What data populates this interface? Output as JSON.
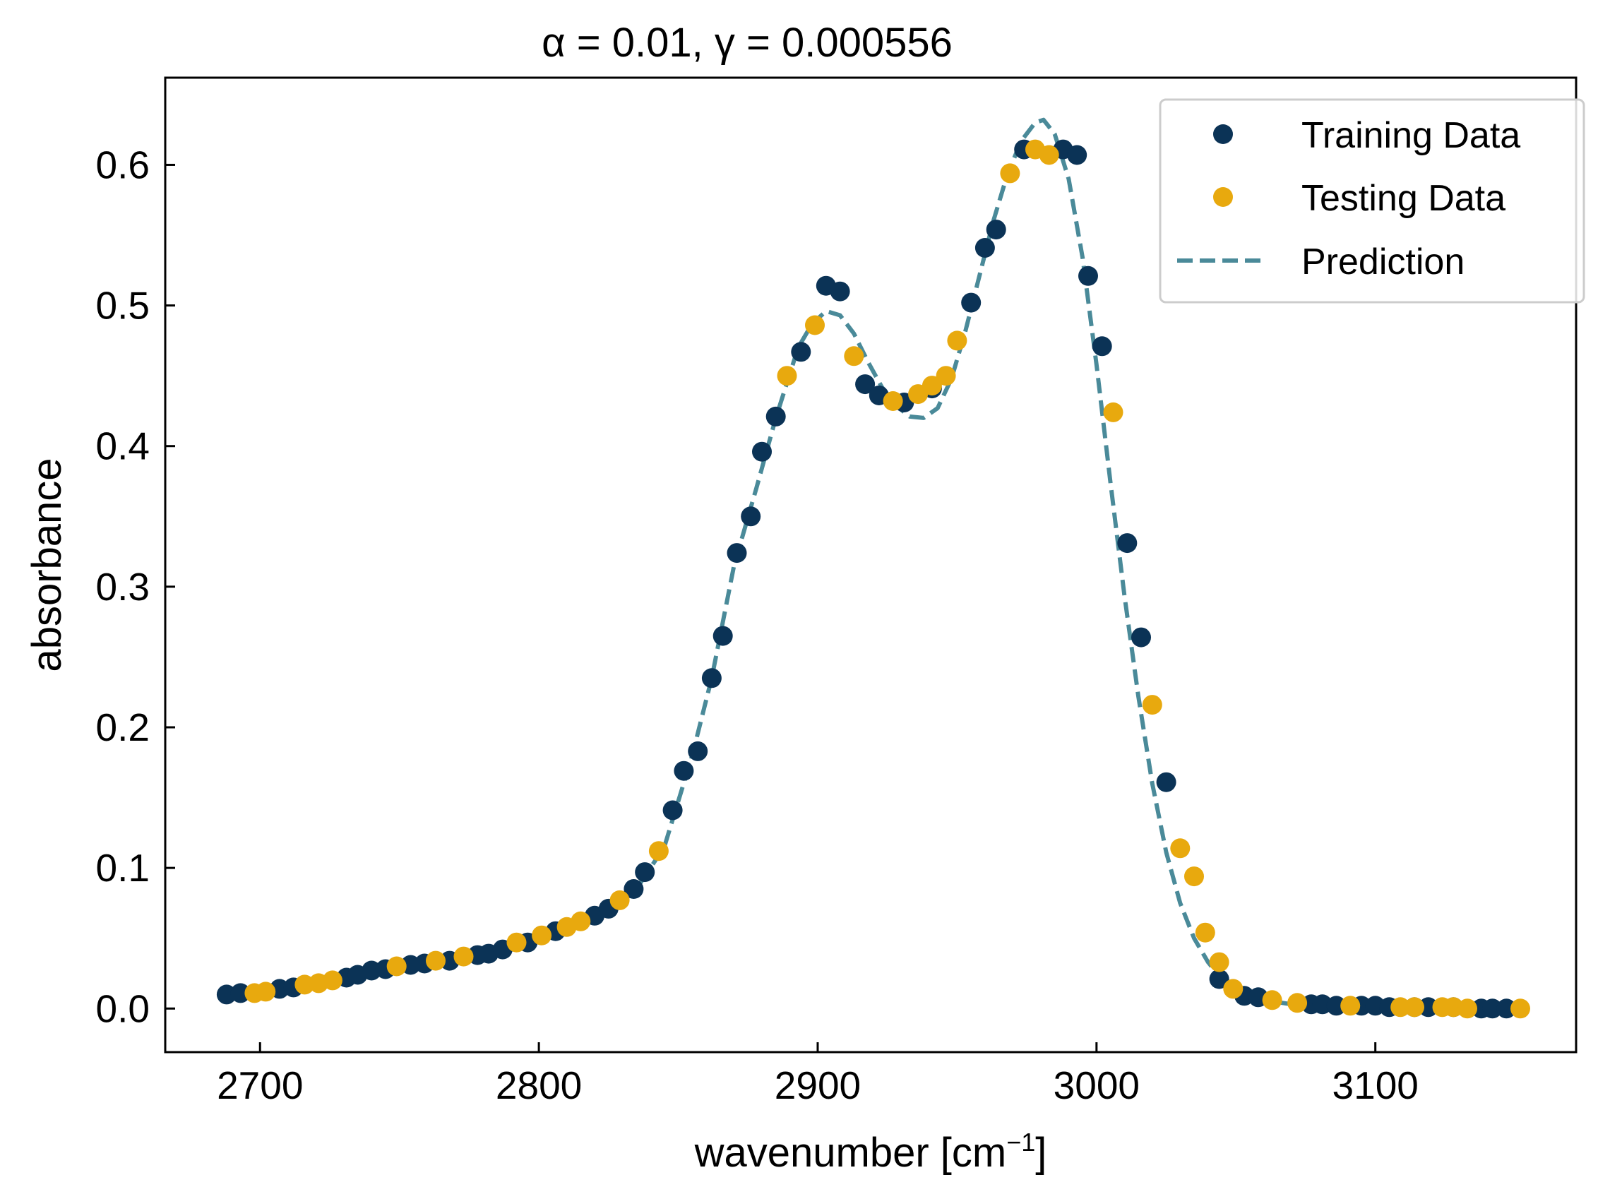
{
  "chart_data": {
    "type": "scatter",
    "title": "α = 0.01, γ = 0.000556",
    "xlabel": "wavenumber [cm⁻¹]",
    "xlabel_main": "wavenumber [cm",
    "xlabel_sup": "−1",
    "xlabel_end": "]",
    "ylabel": "absorbance",
    "xlim": [
      2666,
      3172
    ],
    "ylim": [
      -0.031,
      0.662
    ],
    "xticks": [
      2700,
      2800,
      2900,
      3000,
      3100
    ],
    "xtick_labels": [
      "2700",
      "2800",
      "2900",
      "3000",
      "3100"
    ],
    "yticks": [
      0.0,
      0.1,
      0.2,
      0.3,
      0.4,
      0.5,
      0.6
    ],
    "ytick_labels": [
      "0.0",
      "0.1",
      "0.2",
      "0.3",
      "0.4",
      "0.5",
      "0.6"
    ],
    "grid": false,
    "legend_position": "top-right",
    "series": [
      {
        "name": "Training Data",
        "kind": "points",
        "color": "#0b3356",
        "x": [
          2688,
          2693,
          2707,
          2712,
          2731,
          2735,
          2740,
          2745,
          2754,
          2759,
          2768,
          2778,
          2782,
          2787,
          2796,
          2806,
          2820,
          2825,
          2834,
          2838,
          2848,
          2852,
          2857,
          2862,
          2866,
          2871,
          2876,
          2880,
          2885,
          2894,
          2903,
          2908,
          2917,
          2922,
          2931,
          2941,
          2955,
          2960,
          2964,
          2974,
          2988,
          2993,
          2997,
          3002,
          3011,
          3016,
          3025,
          3044,
          3053,
          3058,
          3077,
          3081,
          3086,
          3095,
          3100,
          3105,
          3114,
          3119,
          3128,
          3138,
          3142,
          3147
        ],
        "y": [
          0.01,
          0.011,
          0.014,
          0.015,
          0.022,
          0.024,
          0.027,
          0.028,
          0.031,
          0.032,
          0.034,
          0.038,
          0.039,
          0.042,
          0.047,
          0.055,
          0.066,
          0.071,
          0.085,
          0.097,
          0.141,
          0.169,
          0.183,
          0.235,
          0.265,
          0.324,
          0.35,
          0.396,
          0.421,
          0.467,
          0.514,
          0.51,
          0.444,
          0.436,
          0.431,
          0.441,
          0.502,
          0.541,
          0.554,
          0.611,
          0.611,
          0.607,
          0.521,
          0.471,
          0.331,
          0.264,
          0.161,
          0.021,
          0.009,
          0.008,
          0.003,
          0.003,
          0.002,
          0.002,
          0.002,
          0.001,
          0.001,
          0.001,
          0.001,
          0.0,
          0.0,
          0.0
        ]
      },
      {
        "name": "Testing Data",
        "kind": "points",
        "color": "#e8a90e",
        "x": [
          2698,
          2702,
          2716,
          2721,
          2726,
          2749,
          2763,
          2773,
          2792,
          2801,
          2810,
          2815,
          2829,
          2843,
          2889,
          2899,
          2913,
          2927,
          2936,
          2941,
          2946,
          2950,
          2969,
          2978,
          2983,
          3006,
          3020,
          3030,
          3035,
          3039,
          3044,
          3049,
          3063,
          3072,
          3091,
          3109,
          3114,
          3124,
          3128,
          3133,
          3152
        ],
        "y": [
          0.011,
          0.012,
          0.017,
          0.018,
          0.02,
          0.03,
          0.034,
          0.037,
          0.047,
          0.052,
          0.058,
          0.062,
          0.077,
          0.112,
          0.45,
          0.486,
          0.464,
          0.432,
          0.437,
          0.443,
          0.45,
          0.475,
          0.594,
          0.611,
          0.607,
          0.424,
          0.216,
          0.114,
          0.094,
          0.054,
          0.033,
          0.014,
          0.006,
          0.004,
          0.002,
          0.001,
          0.001,
          0.001,
          0.001,
          0.0,
          0.0
        ]
      },
      {
        "name": "Prediction",
        "kind": "dashed-line",
        "color": "#4a8a99",
        "x": [
          2690,
          2710,
          2730,
          2750,
          2770,
          2790,
          2810,
          2825,
          2835,
          2845,
          2855,
          2862,
          2870,
          2878,
          2885,
          2893,
          2898,
          2903,
          2908,
          2913,
          2918,
          2923,
          2928,
          2933,
          2938,
          2943,
          2948,
          2953,
          2958,
          2963,
          2968,
          2973,
          2978,
          2981,
          2985,
          2990,
          2995,
          3000,
          3005,
          3010,
          3015,
          3020,
          3025,
          3030,
          3035,
          3040,
          3045,
          3050,
          3060,
          3070,
          3085,
          3100,
          3120,
          3150
        ],
        "y": [
          0.009,
          0.014,
          0.022,
          0.03,
          0.037,
          0.046,
          0.057,
          0.07,
          0.085,
          0.115,
          0.18,
          0.235,
          0.315,
          0.37,
          0.42,
          0.47,
          0.487,
          0.496,
          0.493,
          0.48,
          0.46,
          0.442,
          0.429,
          0.421,
          0.42,
          0.427,
          0.448,
          0.482,
          0.521,
          0.56,
          0.593,
          0.617,
          0.63,
          0.632,
          0.622,
          0.59,
          0.534,
          0.458,
          0.374,
          0.294,
          0.222,
          0.16,
          0.111,
          0.075,
          0.05,
          0.033,
          0.021,
          0.014,
          0.006,
          0.003,
          0.001,
          0.0,
          0.0,
          0.0
        ]
      }
    ]
  }
}
